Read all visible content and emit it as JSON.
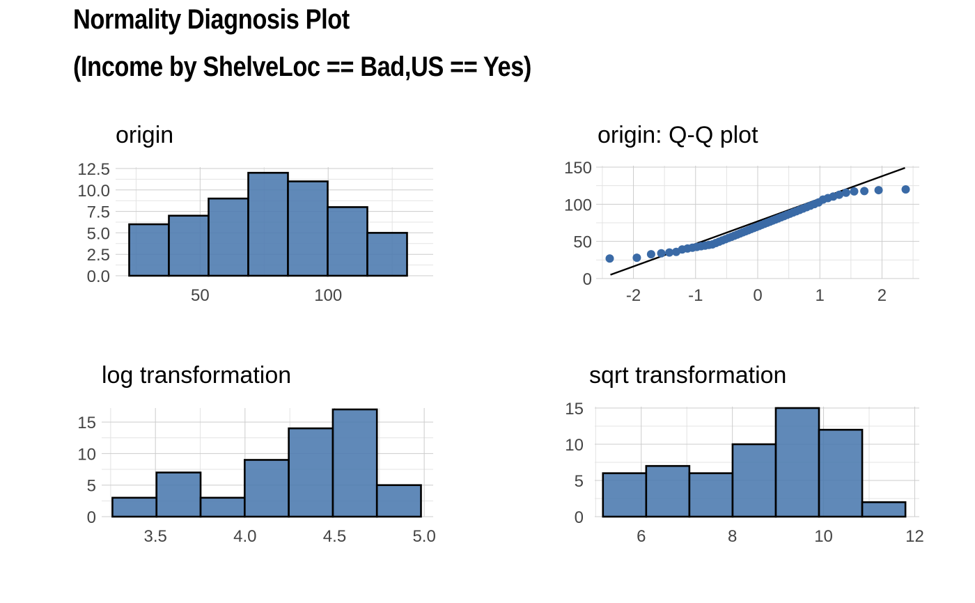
{
  "title": "Normality Diagnosis Plot",
  "subtitle": "(Income by ShelveLoc == Bad,US == Yes)",
  "chart_data": [
    {
      "type": "bar",
      "title": "origin",
      "xlabel": "",
      "ylabel": "",
      "bin_edges": [
        22.3,
        37.8,
        53.3,
        68.8,
        84.3,
        99.8,
        115.3,
        130.8
      ],
      "values": [
        6,
        7,
        9,
        12,
        11,
        8,
        5
      ],
      "xlim": [
        17,
        141
      ],
      "ylim": [
        0,
        12.5
      ],
      "xticks": [
        50,
        100
      ],
      "xtick_labels": [
        "50",
        "100"
      ],
      "yticks": [
        0,
        2.5,
        5,
        7.5,
        10,
        12.5
      ],
      "ytick_labels": [
        "0.0",
        "2.5",
        "5.0",
        "7.5",
        "10.0",
        "12.5"
      ],
      "grid": true
    },
    {
      "type": "scatter",
      "title": "origin: Q-Q plot",
      "xlabel": "",
      "ylabel": "",
      "xlim": [
        -2.6,
        2.6
      ],
      "ylim": [
        0,
        150
      ],
      "xticks": [
        -2,
        -1,
        0,
        1,
        2
      ],
      "xtick_labels": [
        "-2",
        "-1",
        "0",
        "1",
        "2"
      ],
      "yticks": [
        0,
        50,
        100,
        150
      ],
      "ytick_labels": [
        "0",
        "50",
        "100",
        "150"
      ],
      "reference_line": {
        "x": [
          -2.37,
          2.37
        ],
        "y": [
          5,
          149
        ]
      },
      "grid": true
    },
    {
      "type": "bar",
      "title": "log transformation",
      "xlabel": "",
      "ylabel": "",
      "bin_edges": [
        3.26,
        3.506,
        3.752,
        3.998,
        4.244,
        4.49,
        4.736,
        4.982
      ],
      "values": [
        3,
        7,
        3,
        9,
        14,
        17,
        5
      ],
      "xlim": [
        3.2,
        5.05
      ],
      "ylim": [
        0,
        17
      ],
      "xticks": [
        3.5,
        4.0,
        4.5,
        5.0
      ],
      "xtick_labels": [
        "3.5",
        "4.0",
        "4.5",
        "5.0"
      ],
      "yticks": [
        0,
        5,
        10,
        15
      ],
      "ytick_labels": [
        "0",
        "5",
        "10",
        "15"
      ],
      "grid": true
    },
    {
      "type": "bar",
      "title": "sqrt transformation",
      "xlabel": "",
      "ylabel": "",
      "bin_edges": [
        5.16,
        6.108,
        7.056,
        8.004,
        8.952,
        9.9,
        10.848,
        11.796
      ],
      "values": [
        6,
        7,
        6,
        10,
        15,
        12,
        2
      ],
      "xlim": [
        4.98,
        12.1
      ],
      "ylim": [
        0,
        15
      ],
      "xticks": [
        6,
        8,
        10,
        12
      ],
      "xtick_labels": [
        "6",
        "8",
        "10",
        "12"
      ],
      "yticks": [
        0,
        5,
        10,
        15
      ],
      "ytick_labels": [
        "0",
        "5",
        "10",
        "15"
      ],
      "grid": true
    }
  ],
  "colors": {
    "bar_fill": "#4a79ae",
    "point_fill": "#3a6aa6",
    "bar_outline": "#000000",
    "grid": "#cccccc",
    "tick_text": "#444444"
  }
}
